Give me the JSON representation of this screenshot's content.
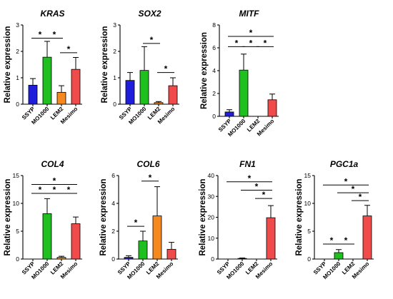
{
  "chart_data": [
    {
      "type": "bar",
      "title": "KRAS",
      "ylabel": "Relative expression",
      "categories": [
        "SSYP",
        "MO1000",
        "LEM2",
        "Mesimo"
      ],
      "values": [
        0.72,
        1.78,
        0.45,
        1.32
      ],
      "errors": [
        0.25,
        0.6,
        0.25,
        0.45
      ],
      "ylim": [
        0,
        3
      ],
      "yticks": [
        0,
        1,
        2,
        3
      ],
      "colors": [
        "#1f1fdb",
        "#1fbf1f",
        "#f5891f",
        "#ef4b4b"
      ],
      "significance": [
        {
          "from": 0,
          "to": 1,
          "y": 2.5,
          "label": "*"
        },
        {
          "from": 1,
          "to": 2,
          "y": 2.5,
          "label": "*"
        },
        {
          "from": 2,
          "to": 3,
          "y": 1.95,
          "label": "*"
        }
      ]
    },
    {
      "type": "bar",
      "title": "SOX2",
      "ylabel": "Relative expression",
      "categories": [
        "SSYP",
        "MO1000",
        "LEM2",
        "Mesimo"
      ],
      "values": [
        0.9,
        1.28,
        0.06,
        0.7
      ],
      "errors": [
        0.3,
        0.9,
        0.04,
        0.3
      ],
      "ylim": [
        0,
        3
      ],
      "yticks": [
        0,
        1,
        2,
        3
      ],
      "colors": [
        "#1f1fdb",
        "#1fbf1f",
        "#f5891f",
        "#ef4b4b"
      ],
      "significance": [
        {
          "from": 1,
          "to": 2,
          "y": 2.3,
          "label": "*"
        },
        {
          "from": 2,
          "to": 3,
          "y": 1.2,
          "label": "*"
        }
      ]
    },
    {
      "type": "bar",
      "title": "MITF",
      "ylabel": "Relative expression",
      "categories": [
        "SSYP",
        "MO1000",
        "LEM2",
        "Mesimo"
      ],
      "values": [
        0.38,
        4.05,
        0.0,
        1.45
      ],
      "errors": [
        0.2,
        1.4,
        0.0,
        0.5
      ],
      "ylim": [
        0,
        8
      ],
      "yticks": [
        0,
        2,
        4,
        6,
        8
      ],
      "colors": [
        "#1f1fdb",
        "#1fbf1f",
        "#f5891f",
        "#ef4b4b"
      ],
      "significance": [
        {
          "from": 0,
          "to": 3,
          "y": 7.0,
          "label": "*"
        },
        {
          "from": 0,
          "to": 1,
          "y": 6.1,
          "label": "*"
        },
        {
          "from": 1,
          "to": 2,
          "y": 6.1,
          "label": "*"
        },
        {
          "from": 2,
          "to": 3,
          "y": 6.1,
          "label": "*"
        }
      ]
    },
    {
      "type": "bar",
      "title": "COL4",
      "ylabel": "Relative expression",
      "categories": [
        "SSYP",
        "MO1000",
        "LEM2",
        "Mesimo"
      ],
      "values": [
        0.0,
        8.15,
        0.3,
        6.35
      ],
      "errors": [
        0.0,
        2.7,
        0.2,
        1.2
      ],
      "ylim": [
        0,
        15
      ],
      "yticks": [
        0,
        5,
        10,
        15
      ],
      "colors": [
        "#1f1fdb",
        "#1fbf1f",
        "#f5891f",
        "#ef4b4b"
      ],
      "significance": [
        {
          "from": 0,
          "to": 3,
          "y": 13.4,
          "label": "*"
        },
        {
          "from": 0,
          "to": 1,
          "y": 11.8,
          "label": "*"
        },
        {
          "from": 1,
          "to": 2,
          "y": 11.8,
          "label": "*"
        },
        {
          "from": 2,
          "to": 3,
          "y": 11.8,
          "label": "*"
        }
      ]
    },
    {
      "type": "bar",
      "title": "COL6",
      "ylabel": "Relative expression",
      "categories": [
        "SSYP",
        "MO1000",
        "LEM2",
        "Mesimo"
      ],
      "values": [
        0.12,
        1.3,
        3.1,
        0.7
      ],
      "errors": [
        0.12,
        0.7,
        2.1,
        0.5
      ],
      "ylim": [
        0,
        6
      ],
      "yticks": [
        0,
        2,
        4,
        6
      ],
      "colors": [
        "#1f1fdb",
        "#1fbf1f",
        "#f5891f",
        "#ef4b4b"
      ],
      "significance": [
        {
          "from": 0,
          "to": 1,
          "y": 2.35,
          "label": "*"
        },
        {
          "from": 1,
          "to": 2,
          "y": 5.6,
          "label": "*"
        }
      ]
    },
    {
      "type": "bar",
      "title": "FN1",
      "ylabel": "Relative expression",
      "categories": [
        "SSYP",
        "MO1000",
        "LEM2",
        "Mesimo"
      ],
      "values": [
        0.0,
        0.3,
        0.0,
        19.8
      ],
      "errors": [
        0.0,
        0.2,
        0.0,
        5.8
      ],
      "ylim": [
        0,
        40
      ],
      "yticks": [
        0,
        10,
        20,
        30,
        40
      ],
      "colors": [
        "#1f1fdb",
        "#1fbf1f",
        "#f5891f",
        "#ef4b4b"
      ],
      "significance": [
        {
          "from": 0,
          "to": 3,
          "y": 37.0,
          "label": "*"
        },
        {
          "from": 1,
          "to": 3,
          "y": 33.0,
          "label": "*"
        },
        {
          "from": 2,
          "to": 3,
          "y": 29.0,
          "label": "*"
        }
      ]
    },
    {
      "type": "bar",
      "title": "PGC1a",
      "ylabel": "Relative expression",
      "categories": [
        "SSYP",
        "MO1000",
        "LEM2",
        "Mesimo"
      ],
      "values": [
        0.0,
        1.15,
        0.0,
        7.75
      ],
      "errors": [
        0.0,
        0.55,
        0.0,
        1.9
      ],
      "ylim": [
        0,
        15
      ],
      "yticks": [
        0,
        5,
        10,
        15
      ],
      "colors": [
        "#1f1fdb",
        "#1fbf1f",
        "#f5891f",
        "#ef4b4b"
      ],
      "significance": [
        {
          "from": 0,
          "to": 3,
          "y": 13.3,
          "label": "*"
        },
        {
          "from": 1,
          "to": 3,
          "y": 11.9,
          "label": "*"
        },
        {
          "from": 2,
          "to": 3,
          "y": 10.5,
          "label": "*"
        },
        {
          "from": 0,
          "to": 1,
          "y": 2.7,
          "label": "*"
        },
        {
          "from": 1,
          "to": 2,
          "y": 2.7,
          "label": "*"
        }
      ]
    }
  ]
}
